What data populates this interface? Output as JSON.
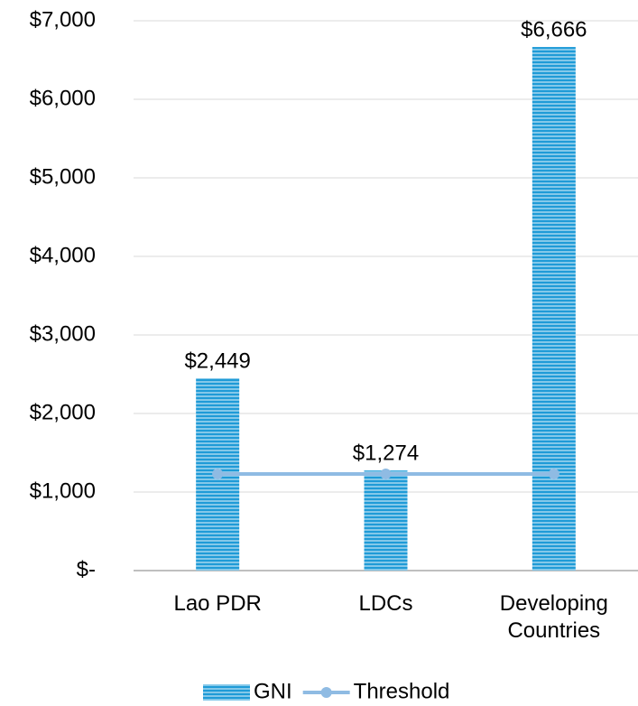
{
  "chart_data": {
    "type": "bar",
    "categories": [
      "Lao PDR",
      "LDCs",
      "Developing Countries"
    ],
    "series": [
      {
        "name": "GNI",
        "type": "bar",
        "color": "#1f9bd7",
        "values": [
          2449,
          1274,
          6666
        ],
        "value_labels": [
          "$2,449",
          "$1,274",
          "$6,666"
        ]
      },
      {
        "name": "Threshold",
        "type": "line",
        "color": "#8fbbe3",
        "values": [
          1230,
          1230,
          1230
        ]
      }
    ],
    "ylim": [
      0,
      7000
    ],
    "yticks": [
      {
        "value": 0,
        "label": "$-"
      },
      {
        "value": 1000,
        "label": "$1,000"
      },
      {
        "value": 2000,
        "label": "$2,000"
      },
      {
        "value": 3000,
        "label": "$3,000"
      },
      {
        "value": 4000,
        "label": "$4,000"
      },
      {
        "value": 5000,
        "label": "$5,000"
      },
      {
        "value": 6000,
        "label": "$6,000"
      },
      {
        "value": 7000,
        "label": "$7,000"
      }
    ],
    "grid": true,
    "legend": "bottom"
  }
}
